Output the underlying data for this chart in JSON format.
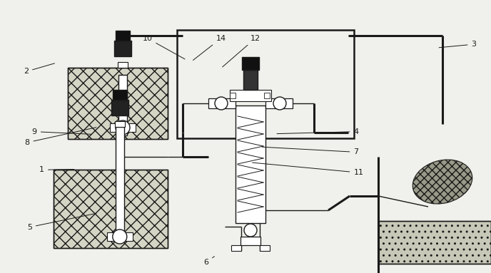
{
  "bg_color": "#f0f0ec",
  "line_color": "#1a1a1a",
  "lw": 1.0,
  "lw_thick": 1.8,
  "labels": {
    "5": [
      0.055,
      0.84,
      0.2,
      0.78
    ],
    "1": [
      0.08,
      0.63,
      0.155,
      0.62
    ],
    "9": [
      0.065,
      0.49,
      0.19,
      0.492
    ],
    "8": [
      0.05,
      0.53,
      0.2,
      0.465
    ],
    "2": [
      0.048,
      0.27,
      0.115,
      0.23
    ],
    "6": [
      0.415,
      0.968,
      0.44,
      0.935
    ],
    "11": [
      0.72,
      0.64,
      0.51,
      0.595
    ],
    "7": [
      0.72,
      0.565,
      0.53,
      0.538
    ],
    "4": [
      0.72,
      0.49,
      0.56,
      0.49
    ],
    "10": [
      0.29,
      0.148,
      0.38,
      0.22
    ],
    "14": [
      0.44,
      0.148,
      0.39,
      0.225
    ],
    "12": [
      0.51,
      0.148,
      0.45,
      0.25
    ],
    "3": [
      0.96,
      0.17,
      0.89,
      0.175
    ]
  }
}
